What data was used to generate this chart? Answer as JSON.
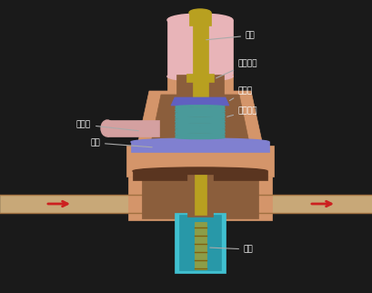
{
  "colors": {
    "bg_color": "#1a1a1a",
    "outer_body": "#d4956a",
    "inner_body": "#8B5E3C",
    "pink_cover": "#e8b4b8",
    "gold_rod": "#b8a020",
    "spring": "#4a9a9a",
    "spring_seat": "#6060c0",
    "diaphragm": "#8080d0",
    "cyan_bottom": "#40c0d0",
    "pipe_pink": "#d4a0a0",
    "arrow_red": "#cc2020",
    "text_color": "#ffffff",
    "dark_body": "#704030",
    "pipe_fill": "#c8a878"
  },
  "labels": {
    "huzhao": "护罩",
    "suojin": "锁紧螺母",
    "tanzuozuo": "弹簧座",
    "kongzhi": "控制弹簧",
    "jinqikong": "进气孔",
    "mopian": "膜片",
    "penzui": "喷嘴"
  }
}
